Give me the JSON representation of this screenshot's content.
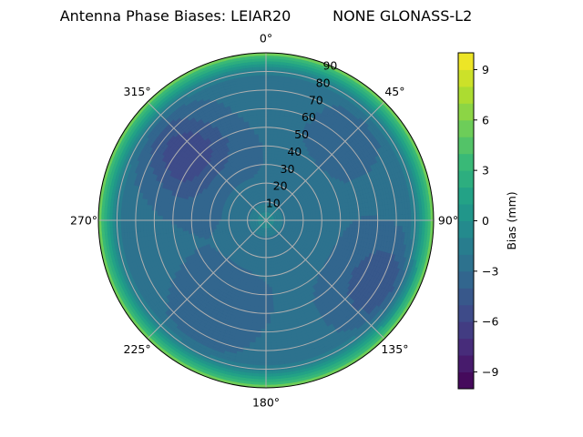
{
  "chart_data": {
    "type": "heatmap",
    "projection": "polar",
    "title": "Antenna Phase Biases: LEIAR20         NONE GLONASS-L2",
    "theta_direction": "clockwise",
    "theta_zero": "top",
    "theta_ticks": [
      {
        "angle": 0,
        "label": "0°"
      },
      {
        "angle": 45,
        "label": "45°"
      },
      {
        "angle": 90,
        "label": "90°"
      },
      {
        "angle": 135,
        "label": "135°"
      },
      {
        "angle": 180,
        "label": "180°"
      },
      {
        "angle": 225,
        "label": "225°"
      },
      {
        "angle": 270,
        "label": "270°"
      },
      {
        "angle": 315,
        "label": "315°"
      }
    ],
    "r_ticks": [
      10,
      20,
      30,
      40,
      50,
      60,
      70,
      80,
      90
    ],
    "r_range": [
      0,
      90
    ],
    "grid": true,
    "colorbar": {
      "label": "Bias (mm)",
      "range": [
        -10,
        10
      ],
      "ticks": [
        -9,
        -6,
        -3,
        0,
        3,
        6,
        9
      ],
      "tick_labels": [
        "−9",
        "−6",
        "−3",
        "0",
        "3",
        "6",
        "9"
      ],
      "levels": 20,
      "colormap": "viridis"
    },
    "field": {
      "center_value": 0,
      "plateau_value": -2.8,
      "edge_value": 6,
      "features": [
        {
          "theta": 310,
          "r": 55,
          "value": -6
        },
        {
          "theta": 120,
          "r": 70,
          "value": -5
        },
        {
          "theta": 210,
          "r": 55,
          "value": -4
        },
        {
          "theta": 45,
          "r": 60,
          "value": -3.3
        }
      ]
    }
  }
}
